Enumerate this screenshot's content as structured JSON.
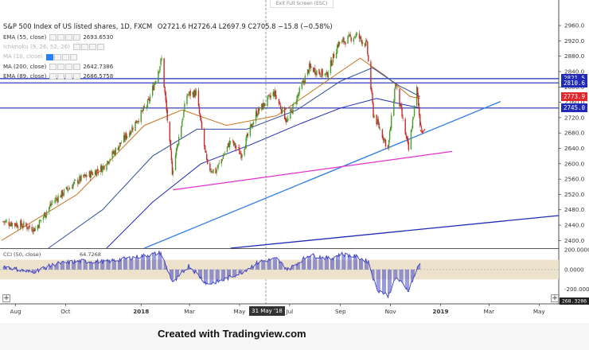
{
  "title": {
    "symbol": "S&P 500 Index of US listed shares, 1D, FXCM",
    "ohlc": "O2721.6 H2726.4 L2697.9 C2705.8 −15.8 (−0.58%)"
  },
  "exit_fullscreen_label": "Exit Full Screen (ESC)",
  "legend": [
    {
      "name": "EMA (55, close)",
      "value": "2693.6530",
      "faded": false
    },
    {
      "name": "Ichimoku (9, 26, 52, 26)",
      "value": "",
      "faded": true
    },
    {
      "name": "MA (10, close)",
      "value": "",
      "faded": true
    },
    {
      "name": "MA (200, close)",
      "value": "2642.7386",
      "faded": false
    },
    {
      "name": "EMA (89, close)",
      "value": "2686.5758",
      "faded": false
    }
  ],
  "oscillator": {
    "label": "CCI (50, close)",
    "value": "64.7268",
    "ticks": [
      "200.0000",
      "0.0000",
      "-200.0000"
    ],
    "current_tag": "268.3206"
  },
  "price_tags": [
    {
      "text": "2821.5",
      "color": "#1f2bb8"
    },
    {
      "text": "2810.6",
      "color": "#1f2bb8"
    },
    {
      "text": "2773.9",
      "color": "#e5262a"
    },
    {
      "text": "2745.0",
      "color": "#1f2bb8"
    }
  ],
  "crosshair_date": "31 May '18",
  "footer_text": "Created with Tradingview.com",
  "colors": {
    "up": "#4a9a2a",
    "down": "#c92a2a",
    "ema55": "#c8741f",
    "ma200": "#1f2bb8",
    "ema89": "#2d4fa0",
    "support_blue": "#2f7ee8",
    "support_magenta": "#e030d0",
    "hline": "#1f2bb8",
    "cci": "#3a3fc4",
    "cci_band": "#ede3cc"
  },
  "chart_data": {
    "type": "candlestick",
    "title": "S&P 500 Index of US listed shares, 1D, FXCM",
    "y_ticks": [
      2400,
      2440,
      2480,
      2520,
      2560,
      2600,
      2640,
      2680,
      2720,
      2760,
      2800,
      2840,
      2880,
      2920,
      2960
    ],
    "ylim": [
      2380,
      2985
    ],
    "x_ticks": [
      "Aug",
      "Oct",
      "2018",
      "Mar",
      "May",
      "Jul",
      "Sep",
      "Nov",
      "2019",
      "Mar",
      "May"
    ],
    "x_range": [
      "2017-07-15",
      "2019-05-25"
    ],
    "price_path": [
      [
        "2017-07-15",
        2450
      ],
      [
        "2017-08-10",
        2440
      ],
      [
        "2017-08-25",
        2430
      ],
      [
        "2017-09-15",
        2500
      ],
      [
        "2017-10-15",
        2555
      ],
      [
        "2017-11-15",
        2590
      ],
      [
        "2017-12-20",
        2690
      ],
      [
        "2018-01-10",
        2760
      ],
      [
        "2018-01-26",
        2872
      ],
      [
        "2018-02-08",
        2580
      ],
      [
        "2018-02-26",
        2780
      ],
      [
        "2018-03-09",
        2785
      ],
      [
        "2018-03-23",
        2590
      ],
      [
        "2018-04-02",
        2580
      ],
      [
        "2018-04-20",
        2660
      ],
      [
        "2018-05-03",
        2625
      ],
      [
        "2018-05-21",
        2730
      ],
      [
        "2018-06-12",
        2785
      ],
      [
        "2018-06-28",
        2710
      ],
      [
        "2018-07-25",
        2850
      ],
      [
        "2018-08-15",
        2830
      ],
      [
        "2018-08-29",
        2912
      ],
      [
        "2018-09-20",
        2935
      ],
      [
        "2018-10-03",
        2910
      ],
      [
        "2018-10-11",
        2730
      ],
      [
        "2018-10-29",
        2640
      ],
      [
        "2018-11-07",
        2810
      ],
      [
        "2018-11-23",
        2635
      ],
      [
        "2018-12-01",
        2760
      ],
      [
        "2018-12-03",
        2795
      ],
      [
        "2018-12-07",
        2705
      ]
    ],
    "series": [
      {
        "name": "EMA (55, close)",
        "values": [
          [
            "2017-07-15",
            2400
          ],
          [
            "2017-10-15",
            2520
          ],
          [
            "2018-01-05",
            2700
          ],
          [
            "2018-02-20",
            2740
          ],
          [
            "2018-04-15",
            2700
          ],
          [
            "2018-06-15",
            2725
          ],
          [
            "2018-08-15",
            2815
          ],
          [
            "2018-09-25",
            2875
          ],
          [
            "2018-10-25",
            2830
          ],
          [
            "2018-11-25",
            2775
          ],
          [
            "2018-12-07",
            2770
          ]
        ]
      },
      {
        "name": "EMA (89, close)",
        "values": [
          [
            "2017-09-10",
            2380
          ],
          [
            "2017-11-15",
            2480
          ],
          [
            "2018-01-15",
            2620
          ],
          [
            "2018-03-10",
            2690
          ],
          [
            "2018-05-10",
            2690
          ],
          [
            "2018-07-10",
            2740
          ],
          [
            "2018-09-01",
            2815
          ],
          [
            "2018-10-10",
            2850
          ],
          [
            "2018-11-10",
            2805
          ],
          [
            "2018-12-07",
            2775
          ]
        ]
      },
      {
        "name": "MA (200, close)",
        "values": [
          [
            "2017-11-20",
            2380
          ],
          [
            "2018-01-15",
            2500
          ],
          [
            "2018-03-15",
            2600
          ],
          [
            "2018-05-15",
            2650
          ],
          [
            "2018-07-15",
            2705
          ],
          [
            "2018-09-01",
            2745
          ],
          [
            "2018-10-15",
            2770
          ],
          [
            "2018-11-15",
            2755
          ],
          [
            "2018-12-07",
            2745
          ]
        ]
      }
    ],
    "trendlines": [
      {
        "color": "blue",
        "from": [
          "2018-01-05",
          2380
        ],
        "to": [
          "2019-03-15",
          2762
        ]
      },
      {
        "color": "magenta",
        "from": [
          "2018-02-09",
          2532
        ],
        "to": [
          "2019-01-15",
          2632
        ]
      },
      {
        "color": "navy",
        "from": [
          "2018-04-20",
          2380
        ],
        "to": [
          "2019-05-25",
          2465
        ]
      }
    ],
    "hlines": [
      2821.5,
      2810.6,
      2745.0
    ],
    "projection_arrow": {
      "from": [
        "2018-12-07",
        2712
      ],
      "to": [
        "2018-12-10",
        2680
      ],
      "color": "red"
    },
    "cci": {
      "name": "CCI (50, close)",
      "ylim": [
        -268,
        210
      ],
      "ticks": [
        200,
        0,
        -200
      ],
      "band": [
        -100,
        100
      ],
      "values": [
        [
          "2017-07-15",
          40
        ],
        [
          "2017-08-20",
          -30
        ],
        [
          "2017-09-20",
          60
        ],
        [
          "2017-10-20",
          85
        ],
        [
          "2017-11-20",
          80
        ],
        [
          "2017-12-20",
          120
        ],
        [
          "2018-01-25",
          170
        ],
        [
          "2018-02-09",
          -140
        ],
        [
          "2018-02-28",
          40
        ],
        [
          "2018-03-23",
          -150
        ],
        [
          "2018-04-10",
          -110
        ],
        [
          "2018-05-03",
          -30
        ],
        [
          "2018-05-25",
          80
        ],
        [
          "2018-06-15",
          110
        ],
        [
          "2018-06-29",
          0
        ],
        [
          "2018-07-25",
          150
        ],
        [
          "2018-08-20",
          110
        ],
        [
          "2018-09-01",
          160
        ],
        [
          "2018-09-21",
          130
        ],
        [
          "2018-10-05",
          80
        ],
        [
          "2018-10-15",
          -200
        ],
        [
          "2018-10-29",
          -265
        ],
        [
          "2018-11-08",
          -80
        ],
        [
          "2018-11-23",
          -210
        ],
        [
          "2018-12-03",
          0
        ],
        [
          "2018-12-07",
          65
        ]
      ]
    }
  }
}
